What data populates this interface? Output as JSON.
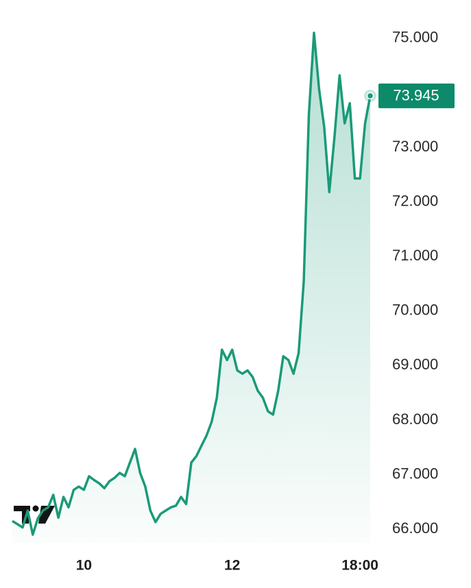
{
  "chart_data": {
    "type": "area",
    "categories": [
      null,
      null,
      null,
      null,
      null,
      null,
      null,
      null,
      null,
      null,
      null,
      null,
      null,
      null,
      "10",
      null,
      null,
      null,
      null,
      null,
      null,
      null,
      null,
      null,
      null,
      null,
      null,
      null,
      null,
      null,
      null,
      null,
      null,
      null,
      null,
      null,
      null,
      null,
      null,
      null,
      null,
      null,
      null,
      "12",
      null,
      null,
      null,
      null,
      null,
      null,
      null,
      null,
      null,
      null,
      null,
      null,
      null,
      null,
      null,
      null,
      null,
      null,
      null,
      null,
      null,
      null,
      null,
      null,
      "18:00",
      null,
      null
    ],
    "values": [
      66.15,
      66.09,
      66.03,
      66.34,
      65.9,
      66.2,
      66.34,
      66.4,
      66.63,
      66.21,
      66.59,
      66.4,
      66.72,
      66.78,
      66.72,
      66.97,
      66.9,
      66.84,
      66.75,
      66.88,
      66.94,
      67.03,
      66.97,
      67.22,
      67.47,
      67.03,
      66.78,
      66.34,
      66.13,
      66.28,
      66.34,
      66.4,
      66.43,
      66.59,
      66.46,
      67.22,
      67.34,
      67.53,
      67.72,
      67.97,
      68.41,
      69.29,
      69.1,
      69.29,
      68.91,
      68.85,
      68.91,
      68.79,
      68.54,
      68.41,
      68.16,
      68.1,
      68.54,
      69.17,
      69.1,
      68.85,
      69.23,
      70.55,
      73.6,
      75.1,
      74.07,
      73.37,
      72.18,
      73.18,
      74.32,
      73.44,
      73.81,
      72.43,
      72.43,
      73.44,
      73.945
    ],
    "color": "#1a9a78",
    "last_value": 73.945,
    "ylim": [
      65.75,
      75.35
    ],
    "yticks": [
      {
        "value": 66,
        "label": "66.000"
      },
      {
        "value": 67,
        "label": "67.000"
      },
      {
        "value": 68,
        "label": "68.000"
      },
      {
        "value": 69,
        "label": "69.000"
      },
      {
        "value": 70,
        "label": "70.000"
      },
      {
        "value": 71,
        "label": "71.000"
      },
      {
        "value": 72,
        "label": "72.000"
      },
      {
        "value": 73,
        "label": "73.000"
      },
      {
        "value": 75,
        "label": "75.000"
      }
    ]
  }
}
